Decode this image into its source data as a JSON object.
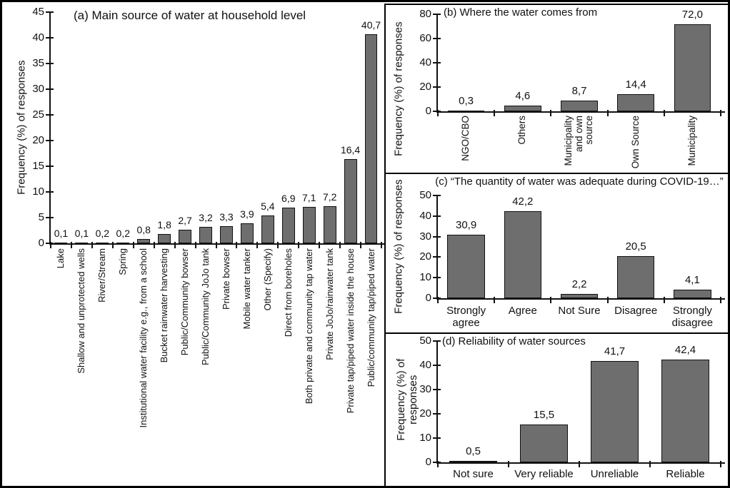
{
  "figure": {
    "bar_fill": "#6e6e6e",
    "bar_border": "#111111",
    "background": "#ffffff"
  },
  "chart_data": [
    {
      "id": "a",
      "type": "bar",
      "title": "(a) Main source of water at household level",
      "ylabel": "Frequency (%) of responses",
      "ylim": [
        0,
        45
      ],
      "ytick_step": 5,
      "grid": false,
      "categories": [
        "Lake",
        "Shallow and unprotected wells",
        "River/Stream",
        "Spring",
        "Institutional water facility e.g., from a school",
        "Bucket rainwater harvesting",
        "Public/Community bowser",
        "Public/Community JoJo tank",
        "Private bowser",
        "Mobile water tanker",
        "Other (Specify)",
        "Direct from boreholes",
        "Both private and community tap water",
        "Private JoJo/rainwater tank",
        "Private tap/piped water inside the house",
        "Public/community tap/piped water"
      ],
      "values": [
        0.1,
        0.1,
        0.2,
        0.2,
        0.8,
        1.8,
        2.7,
        3.2,
        3.3,
        3.9,
        5.4,
        6.9,
        7.1,
        7.2,
        16.4,
        40.7
      ],
      "value_labels": [
        "0,1",
        "0,1",
        "0,2",
        "0,2",
        "0,8",
        "1,8",
        "2,7",
        "3,2",
        "3,3",
        "3,9",
        "5,4",
        "6,9",
        "7,1",
        "7,2",
        "16,4",
        "40,7"
      ]
    },
    {
      "id": "b",
      "type": "bar",
      "title": "(b) Where the water comes from",
      "ylabel": "Frequency (%) of responses",
      "ylim": [
        0,
        80
      ],
      "ytick_step": 20,
      "grid": false,
      "categories": [
        "NGO/CBO",
        "Others",
        "Municipality and own source",
        "Own Source",
        "Municipality"
      ],
      "values": [
        0.3,
        4.6,
        8.7,
        14.4,
        72.0
      ],
      "value_labels": [
        "0,3",
        "4,6",
        "8,7",
        "14,4",
        "72,0"
      ]
    },
    {
      "id": "c",
      "type": "bar",
      "title": "(c) “The quantity of water was adequate during COVID-19…”",
      "ylabel": "Frequency (%) of responses",
      "ylim": [
        0,
        50
      ],
      "ytick_step": 10,
      "grid": false,
      "categories": [
        "Strongly agree",
        "Agree",
        "Not Sure",
        "Disagree",
        "Strongly disagree"
      ],
      "values": [
        30.9,
        42.2,
        2.2,
        20.5,
        4.1
      ],
      "value_labels": [
        "30,9",
        "42,2",
        "2,2",
        "20,5",
        "4,1"
      ]
    },
    {
      "id": "d",
      "type": "bar",
      "title": "(d) Reliability of water sources",
      "ylabel": "Frequency (%) of\nresponses",
      "ylim": [
        0,
        50
      ],
      "ytick_step": 10,
      "grid": false,
      "categories": [
        "Not sure",
        "Very reliable",
        "Unreliable",
        "Reliable"
      ],
      "values": [
        0.5,
        15.5,
        41.7,
        42.4
      ],
      "value_labels": [
        "0,5",
        "15,5",
        "41,7",
        "42,4"
      ]
    }
  ]
}
